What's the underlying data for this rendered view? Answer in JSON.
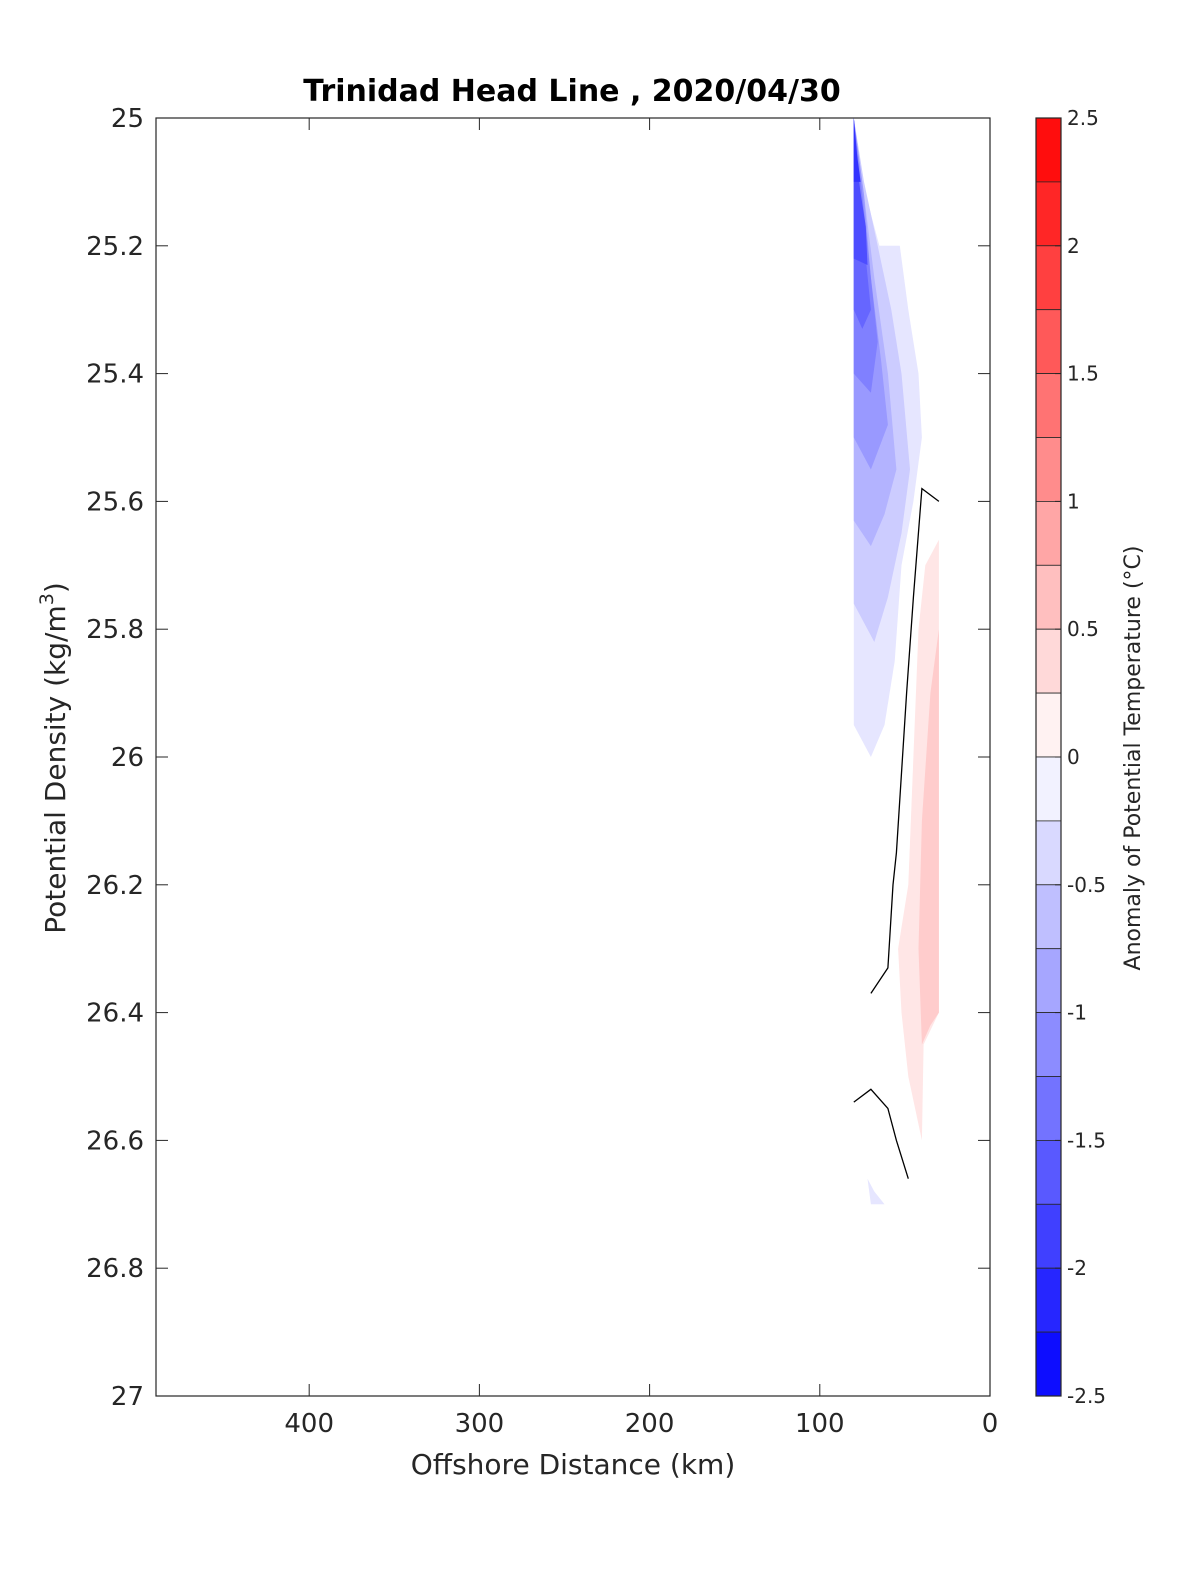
{
  "chart_data": {
    "type": "contour",
    "title": "Trinidad Head Line , 2020/04/30",
    "xlabel": "Offshore Distance (km)",
    "ylabel": "Potential Density (kg/m3)",
    "ylabel_main": "Potential Density (kg/m",
    "ylabel_sup": "3",
    "ylabel_close": ")",
    "xlim": [
      490,
      0
    ],
    "ylim": [
      25,
      27
    ],
    "x_reversed": true,
    "y_reversed": true,
    "xticks": [
      400,
      300,
      200,
      100,
      0
    ],
    "xtick_labels": [
      "400",
      "300",
      "200",
      "100",
      "0"
    ],
    "yticks": [
      25,
      25.2,
      25.4,
      25.6,
      25.8,
      26,
      26.2,
      26.4,
      26.6,
      26.8,
      27
    ],
    "ytick_labels": [
      "25",
      "25.2",
      "25.4",
      "25.6",
      "25.8",
      "26",
      "26.2",
      "26.4",
      "26.6",
      "26.8",
      "27"
    ],
    "colorbar": {
      "label": "Anomaly of Potential Temperature (°C)",
      "limits": [
        -2.5,
        2.5
      ],
      "step": 0.25,
      "ticks": [
        2.5,
        2,
        1.5,
        1,
        0.5,
        0,
        -0.5,
        -1,
        -1.5,
        -2,
        -2.5
      ],
      "tick_labels": [
        "2.5",
        "2",
        "1.5",
        "1",
        "0.5",
        "0",
        "-0.5",
        "-1",
        "-1.5",
        "-2",
        "-2.5"
      ],
      "colormap": "blue-white-red"
    },
    "filled_regions": [
      {
        "level": -0.25,
        "points": [
          [
            80,
            25
          ],
          [
            75,
            25.1
          ],
          [
            65,
            25.2
          ],
          [
            53,
            25.2
          ],
          [
            48,
            25.3
          ],
          [
            42,
            25.4
          ],
          [
            40,
            25.5
          ],
          [
            45,
            25.6
          ],
          [
            52,
            25.7
          ],
          [
            56,
            25.85
          ],
          [
            62,
            25.95
          ],
          [
            70,
            26.0
          ],
          [
            80,
            25.95
          ],
          [
            80,
            25
          ]
        ]
      },
      {
        "level": -0.5,
        "points": [
          [
            80,
            25
          ],
          [
            74,
            25.1
          ],
          [
            66,
            25.2
          ],
          [
            58,
            25.3
          ],
          [
            52,
            25.4
          ],
          [
            47,
            25.55
          ],
          [
            52,
            25.65
          ],
          [
            60,
            25.75
          ],
          [
            68,
            25.82
          ],
          [
            80,
            25.76
          ],
          [
            80,
            25
          ]
        ]
      },
      {
        "level": -0.75,
        "points": [
          [
            80,
            25
          ],
          [
            74,
            25.12
          ],
          [
            68,
            25.25
          ],
          [
            60,
            25.4
          ],
          [
            55,
            25.55
          ],
          [
            62,
            25.62
          ],
          [
            70,
            25.67
          ],
          [
            80,
            25.63
          ],
          [
            80,
            25
          ]
        ]
      },
      {
        "level": -1.0,
        "points": [
          [
            80,
            25
          ],
          [
            74,
            25.12
          ],
          [
            70,
            25.25
          ],
          [
            64,
            25.38
          ],
          [
            60,
            25.48
          ],
          [
            70,
            25.55
          ],
          [
            80,
            25.5
          ],
          [
            80,
            25
          ]
        ]
      },
      {
        "level": -1.25,
        "points": [
          [
            80,
            25
          ],
          [
            75,
            25.12
          ],
          [
            70,
            25.25
          ],
          [
            66,
            25.35
          ],
          [
            70,
            25.43
          ],
          [
            80,
            25.4
          ],
          [
            80,
            25
          ]
        ]
      },
      {
        "level": -1.5,
        "points": [
          [
            80,
            25
          ],
          [
            76,
            25.12
          ],
          [
            73,
            25.22
          ],
          [
            70,
            25.3
          ],
          [
            75,
            25.33
          ],
          [
            80,
            25.3
          ],
          [
            80,
            25
          ]
        ]
      },
      {
        "level": -1.75,
        "points": [
          [
            80,
            25
          ],
          [
            77,
            25.1
          ],
          [
            73,
            25.17
          ],
          [
            72,
            25.23
          ],
          [
            80,
            25.22
          ],
          [
            80,
            25
          ]
        ]
      },
      {
        "level": -2.0,
        "points": [
          [
            80,
            25
          ],
          [
            78,
            25.06
          ],
          [
            76,
            25.1
          ],
          [
            80,
            25.1
          ],
          [
            80,
            25
          ]
        ]
      },
      {
        "level": -0.25,
        "points": [
          [
            72,
            26.66
          ],
          [
            68,
            26.68
          ],
          [
            62,
            26.7
          ],
          [
            70,
            26.7
          ],
          [
            72,
            26.66
          ]
        ]
      },
      {
        "level": 0.25,
        "points": [
          [
            30,
            25.66
          ],
          [
            38,
            25.7
          ],
          [
            42,
            25.8
          ],
          [
            45,
            26.0
          ],
          [
            48,
            26.2
          ],
          [
            54,
            26.3
          ],
          [
            52,
            26.4
          ],
          [
            48,
            26.5
          ],
          [
            40,
            26.6
          ],
          [
            39,
            26.45
          ],
          [
            30,
            26.4
          ],
          [
            30,
            25.66
          ]
        ]
      },
      {
        "level": 0.5,
        "points": [
          [
            30,
            25.8
          ],
          [
            35,
            25.9
          ],
          [
            40,
            26.1
          ],
          [
            42,
            26.3
          ],
          [
            40,
            26.45
          ],
          [
            35,
            26.42
          ],
          [
            30,
            26.4
          ],
          [
            30,
            25.8
          ]
        ]
      }
    ],
    "zero_contours": [
      {
        "level": 0,
        "points": [
          [
            30,
            25.6
          ],
          [
            40,
            25.58
          ],
          [
            45,
            25.75
          ],
          [
            49,
            25.9
          ],
          [
            55,
            26.15
          ],
          [
            57,
            26.2
          ],
          [
            60,
            26.33
          ],
          [
            70,
            26.37
          ]
        ]
      },
      {
        "level": 0,
        "points": [
          [
            80,
            26.54
          ],
          [
            70,
            26.52
          ],
          [
            60,
            26.55
          ],
          [
            55,
            26.6
          ],
          [
            48,
            26.66
          ]
        ]
      }
    ]
  }
}
